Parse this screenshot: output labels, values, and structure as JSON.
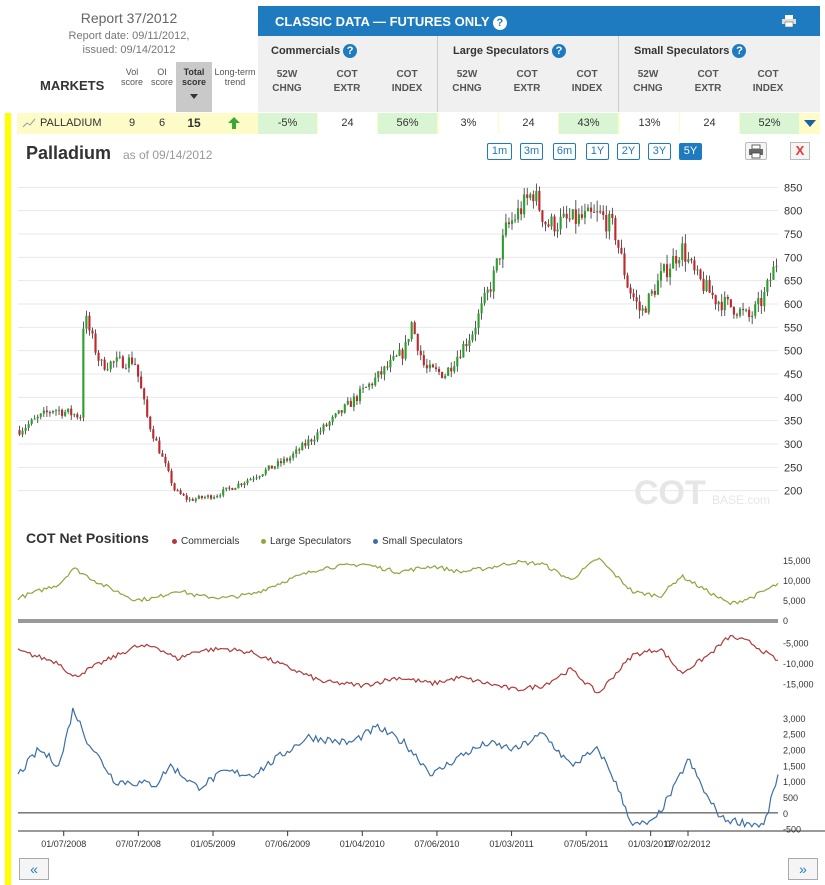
{
  "header": {
    "report_title": "Report 37/2012",
    "report_date": "Report date: 09/11/2012,",
    "issued": "issued: 09/14/2012",
    "markets_label": "MARKETS",
    "col_vol": [
      "Vol",
      "score"
    ],
    "col_oi": [
      "OI",
      "score"
    ],
    "col_total": [
      "Total",
      "score"
    ],
    "col_trend": [
      "Long-term",
      "trend"
    ],
    "panel_title": "CLASSIC DATA — FUTURES ONLY",
    "groups": [
      "Commercials",
      "Large Speculators",
      "Small Speculators"
    ],
    "sub_cols": [
      [
        "52W",
        "CHNG"
      ],
      [
        "COT",
        "EXTR"
      ],
      [
        "COT",
        "INDEX"
      ]
    ]
  },
  "market_row": {
    "name": "PALLADIUM",
    "vol": "9",
    "oi": "6",
    "total": "15",
    "trend": "up",
    "values": [
      "-5%",
      "24",
      "56%",
      "3%",
      "24",
      "43%",
      "13%",
      "24",
      "52%"
    ],
    "green_cells": [
      0,
      2,
      5,
      8
    ]
  },
  "price_chart": {
    "title": "Palladium",
    "as_of": "as of 09/14/2012",
    "ranges": [
      "1m",
      "3m",
      "6m",
      "1Y",
      "2Y",
      "3Y",
      "5Y"
    ],
    "active_range": "5Y",
    "close_label": "X",
    "watermark": "COT",
    "watermark_small": "BASE.com"
  },
  "cot_section": {
    "title": "COT Net Positions",
    "legend": [
      {
        "name": "Commercials",
        "color": "#b03a3a"
      },
      {
        "name": "Large Speculators",
        "color": "#8aa83c"
      },
      {
        "name": "Small Speculators",
        "color": "#3c6ea5"
      }
    ]
  },
  "nav": {
    "prev": "«",
    "next": "»"
  },
  "colors": {
    "up": "#2e9e2e",
    "down": "#c0282d",
    "accent": "#1f7bc0"
  },
  "chart_data": [
    {
      "type": "candlestick",
      "title": "Palladium",
      "ylim": [
        150,
        870
      ],
      "y_ticks": [
        200,
        250,
        300,
        350,
        400,
        450,
        500,
        550,
        600,
        650,
        700,
        750,
        800,
        850
      ],
      "x_ticks": [
        "01/07/2008",
        "07/07/2008",
        "01/05/2009",
        "07/06/2009",
        "01/04/2010",
        "07/06/2010",
        "01/03/2011",
        "07/05/2011",
        "01/03/2012",
        "07/02/2012"
      ],
      "x_tick_fracs": [
        0.06,
        0.17,
        0.28,
        0.39,
        0.5,
        0.61,
        0.72,
        0.83,
        0.925,
        0.98
      ],
      "anchors": [
        [
          0,
          330
        ],
        [
          0.05,
          375
        ],
        [
          0.09,
          360
        ],
        [
          0.095,
          580
        ],
        [
          0.12,
          470
        ],
        [
          0.17,
          480
        ],
        [
          0.19,
          350
        ],
        [
          0.23,
          200
        ],
        [
          0.25,
          180
        ],
        [
          0.29,
          190
        ],
        [
          0.34,
          225
        ],
        [
          0.4,
          270
        ],
        [
          0.47,
          360
        ],
        [
          0.52,
          430
        ],
        [
          0.57,
          500
        ],
        [
          0.58,
          560
        ],
        [
          0.6,
          460
        ],
        [
          0.63,
          450
        ],
        [
          0.67,
          540
        ],
        [
          0.7,
          650
        ],
        [
          0.72,
          760
        ],
        [
          0.76,
          840
        ],
        [
          0.78,
          770
        ],
        [
          0.82,
          780
        ],
        [
          0.86,
          790
        ],
        [
          0.88,
          760
        ],
        [
          0.9,
          640
        ],
        [
          0.92,
          580
        ],
        [
          0.95,
          660
        ],
        [
          0.98,
          720
        ],
        [
          1.0,
          660
        ],
        [
          1.03,
          610
        ],
        [
          1.06,
          590
        ],
        [
          1.08,
          570
        ],
        [
          1.1,
          610
        ],
        [
          1.12,
          690
        ]
      ]
    },
    {
      "type": "line",
      "title": "COT Net Positions",
      "series": [
        {
          "name": "Large Speculators",
          "ylim": [
            0,
            17000
          ],
          "y_ticks": [
            0,
            5000,
            10000,
            15000
          ],
          "anchors": [
            [
              0,
              5500
            ],
            [
              0.06,
              9000
            ],
            [
              0.08,
              13000
            ],
            [
              0.12,
              9000
            ],
            [
              0.17,
              5000
            ],
            [
              0.2,
              5500
            ],
            [
              0.23,
              7500
            ],
            [
              0.26,
              6000
            ],
            [
              0.3,
              5500
            ],
            [
              0.34,
              6500
            ],
            [
              0.39,
              10000
            ],
            [
              0.44,
              13000
            ],
            [
              0.5,
              14000
            ],
            [
              0.55,
              12000
            ],
            [
              0.6,
              13500
            ],
            [
              0.64,
              12000
            ],
            [
              0.68,
              13000
            ],
            [
              0.72,
              14500
            ],
            [
              0.76,
              14000
            ],
            [
              0.8,
              10000
            ],
            [
              0.84,
              15500
            ],
            [
              0.86,
              12000
            ],
            [
              0.89,
              7000
            ],
            [
              0.93,
              6000
            ],
            [
              0.96,
              11000
            ],
            [
              1.0,
              7000
            ],
            [
              1.03,
              4000
            ],
            [
              1.06,
              5500
            ],
            [
              1.1,
              9000
            ]
          ]
        },
        {
          "name": "Commercials",
          "ylim": [
            -19000,
            0
          ],
          "y_ticks": [
            -5000,
            -10000,
            -15000
          ],
          "anchors": [
            [
              0,
              -7000
            ],
            [
              0.06,
              -10000
            ],
            [
              0.08,
              -13500
            ],
            [
              0.12,
              -10000
            ],
            [
              0.17,
              -6000
            ],
            [
              0.2,
              -6000
            ],
            [
              0.23,
              -9000
            ],
            [
              0.26,
              -7000
            ],
            [
              0.3,
              -6500
            ],
            [
              0.34,
              -7500
            ],
            [
              0.39,
              -11000
            ],
            [
              0.44,
              -14500
            ],
            [
              0.5,
              -15500
            ],
            [
              0.55,
              -13500
            ],
            [
              0.6,
              -15000
            ],
            [
              0.64,
              -13500
            ],
            [
              0.68,
              -15000
            ],
            [
              0.72,
              -16500
            ],
            [
              0.76,
              -15500
            ],
            [
              0.8,
              -11500
            ],
            [
              0.84,
              -17500
            ],
            [
              0.86,
              -13500
            ],
            [
              0.89,
              -8000
            ],
            [
              0.93,
              -6500
            ],
            [
              0.96,
              -12500
            ],
            [
              1.0,
              -8000
            ],
            [
              1.03,
              -3500
            ],
            [
              1.06,
              -5000
            ],
            [
              1.1,
              -9500
            ]
          ]
        },
        {
          "name": "Small Speculators",
          "ylim": [
            -700,
            3500
          ],
          "y_ticks": [
            -500,
            0,
            500,
            1000,
            1500,
            2000,
            2500,
            3000
          ],
          "anchors": [
            [
              0,
              1200
            ],
            [
              0.03,
              2000
            ],
            [
              0.06,
              1500
            ],
            [
              0.08,
              3300
            ],
            [
              0.1,
              2300
            ],
            [
              0.14,
              1000
            ],
            [
              0.2,
              900
            ],
            [
              0.22,
              1500
            ],
            [
              0.26,
              800
            ],
            [
              0.3,
              1300
            ],
            [
              0.34,
              1200
            ],
            [
              0.38,
              1800
            ],
            [
              0.42,
              2400
            ],
            [
              0.48,
              2200
            ],
            [
              0.52,
              2700
            ],
            [
              0.56,
              2200
            ],
            [
              0.6,
              1200
            ],
            [
              0.64,
              1800
            ],
            [
              0.68,
              2200
            ],
            [
              0.72,
              2000
            ],
            [
              0.76,
              2500
            ],
            [
              0.8,
              1500
            ],
            [
              0.84,
              2000
            ],
            [
              0.86,
              1200
            ],
            [
              0.89,
              -400
            ],
            [
              0.92,
              -300
            ],
            [
              0.95,
              800
            ],
            [
              0.97,
              1700
            ],
            [
              1.0,
              400
            ],
            [
              1.02,
              -200
            ],
            [
              1.05,
              -300
            ],
            [
              1.08,
              -400
            ],
            [
              1.1,
              1200
            ]
          ]
        }
      ]
    }
  ]
}
